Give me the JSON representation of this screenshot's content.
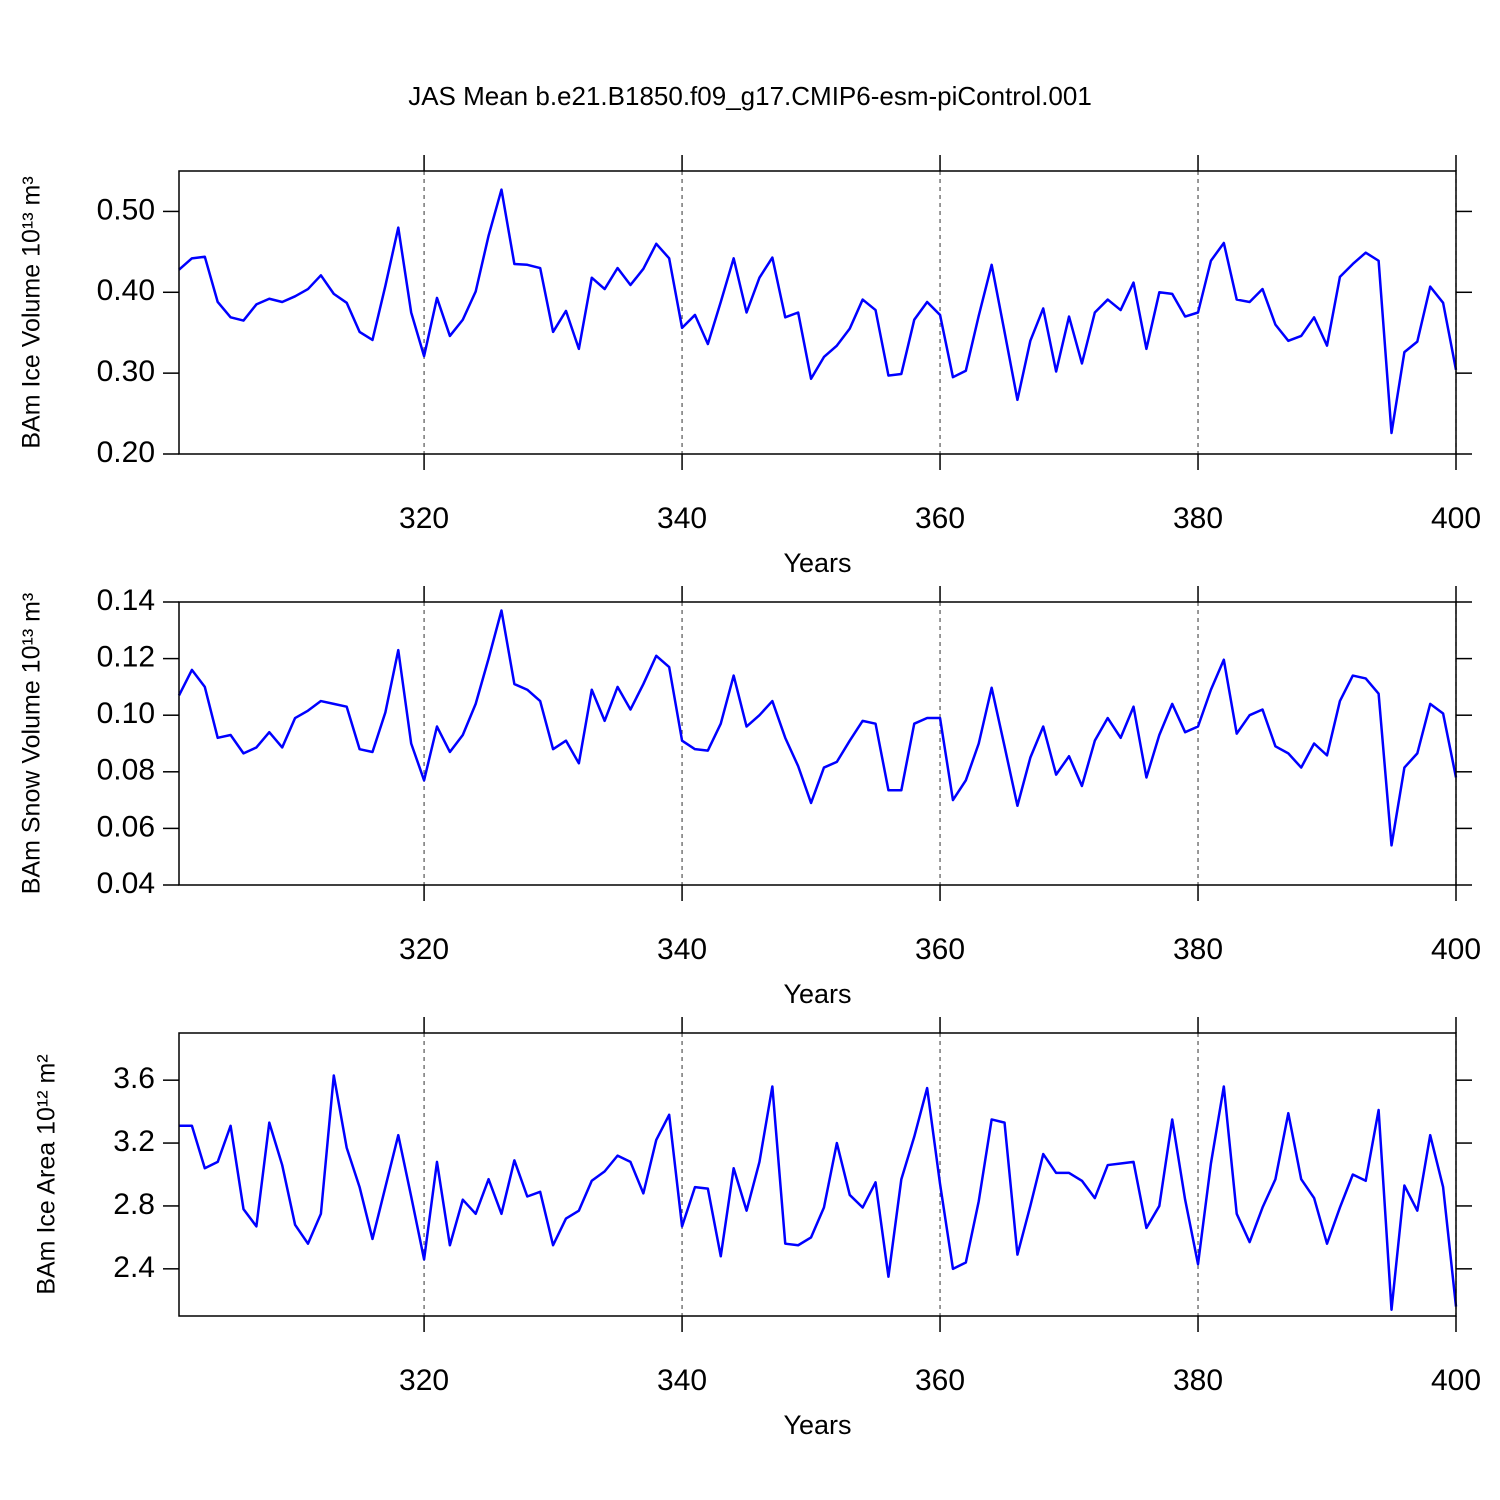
{
  "title": "JAS Mean b.e21.B1850.f09_g17.CMIP6-esm-piControl.001",
  "chart_data": [
    {
      "type": "line",
      "ylabel": "BAm Ice Volume 10¹³ m³",
      "xlabel": "Years",
      "color": "#0000ff",
      "xgrid": true,
      "xlim": [
        301,
        400
      ],
      "xticks": [
        320,
        340,
        360,
        380,
        400
      ],
      "ylim": [
        0.2,
        0.55
      ],
      "yticks": [
        {
          "value": 0.5,
          "label": "0.50"
        },
        {
          "value": 0.4,
          "label": "0.40"
        },
        {
          "value": 0.3,
          "label": "0.30"
        },
        {
          "value": 0.2,
          "label": "0.20"
        }
      ],
      "x": [
        301,
        302,
        303,
        304,
        305,
        306,
        307,
        308,
        309,
        310,
        311,
        312,
        313,
        314,
        315,
        316,
        317,
        318,
        319,
        320,
        321,
        322,
        323,
        324,
        325,
        326,
        327,
        328,
        329,
        330,
        331,
        332,
        333,
        334,
        335,
        336,
        337,
        338,
        339,
        340,
        341,
        342,
        343,
        344,
        345,
        346,
        347,
        348,
        349,
        350,
        351,
        352,
        353,
        354,
        355,
        356,
        357,
        358,
        359,
        360,
        361,
        362,
        363,
        364,
        365,
        366,
        367,
        368,
        369,
        370,
        371,
        372,
        373,
        374,
        375,
        376,
        377,
        378,
        379,
        380,
        381,
        382,
        383,
        384,
        385,
        386,
        387,
        388,
        389,
        390,
        391,
        392,
        393,
        394,
        395,
        396,
        397,
        398,
        399,
        400
      ],
      "values": [
        0.428,
        0.442,
        0.444,
        0.388,
        0.369,
        0.365,
        0.385,
        0.392,
        0.388,
        0.395,
        0.404,
        0.421,
        0.398,
        0.387,
        0.351,
        0.341,
        0.408,
        0.48,
        0.375,
        0.321,
        0.393,
        0.346,
        0.366,
        0.401,
        0.47,
        0.527,
        0.435,
        0.434,
        0.43,
        0.351,
        0.377,
        0.33,
        0.418,
        0.404,
        0.43,
        0.409,
        0.429,
        0.46,
        0.442,
        0.356,
        0.372,
        0.336,
        0.388,
        0.442,
        0.375,
        0.418,
        0.443,
        0.369,
        0.375,
        0.293,
        0.32,
        0.334,
        0.355,
        0.391,
        0.378,
        0.297,
        0.299,
        0.366,
        0.388,
        0.372,
        0.295,
        0.303,
        0.371,
        0.434,
        0.351,
        0.267,
        0.34,
        0.38,
        0.302,
        0.37,
        0.312,
        0.375,
        0.391,
        0.378,
        0.412,
        0.33,
        0.4,
        0.398,
        0.37,
        0.375,
        0.439,
        0.461,
        0.391,
        0.388,
        0.404,
        0.36,
        0.34,
        0.346,
        0.369,
        0.334,
        0.419,
        0.435,
        0.449,
        0.439,
        0.226,
        0.326,
        0.339,
        0.407,
        0.387,
        0.304
      ]
    },
    {
      "type": "line",
      "ylabel": "BAm Snow Volume 10¹³ m³",
      "xlabel": "Years",
      "color": "#0000ff",
      "xgrid": true,
      "xlim": [
        301,
        400
      ],
      "xticks": [
        320,
        340,
        360,
        380,
        400
      ],
      "ylim": [
        0.04,
        0.14
      ],
      "yticks": [
        0.14,
        0.12,
        {
          "value": 0.1,
          "label": "0.10"
        },
        0.08,
        0.06,
        0.04
      ],
      "x": [
        301,
        302,
        303,
        304,
        305,
        306,
        307,
        308,
        309,
        310,
        311,
        312,
        313,
        314,
        315,
        316,
        317,
        318,
        319,
        320,
        321,
        322,
        323,
        324,
        325,
        326,
        327,
        328,
        329,
        330,
        331,
        332,
        333,
        334,
        335,
        336,
        337,
        338,
        339,
        340,
        341,
        342,
        343,
        344,
        345,
        346,
        347,
        348,
        349,
        350,
        351,
        352,
        353,
        354,
        355,
        356,
        357,
        358,
        359,
        360,
        361,
        362,
        363,
        364,
        365,
        366,
        367,
        368,
        369,
        370,
        371,
        372,
        373,
        374,
        375,
        376,
        377,
        378,
        379,
        380,
        381,
        382,
        383,
        384,
        385,
        386,
        387,
        388,
        389,
        390,
        391,
        392,
        393,
        394,
        395,
        396,
        397,
        398,
        399,
        400
      ],
      "values": [
        0.107,
        0.116,
        0.11,
        0.092,
        0.093,
        0.0865,
        0.0886,
        0.094,
        0.0886,
        0.099,
        0.1016,
        0.105,
        0.104,
        0.103,
        0.088,
        0.087,
        0.101,
        0.123,
        0.09,
        0.077,
        0.096,
        0.087,
        0.093,
        0.104,
        0.12,
        0.137,
        0.111,
        0.109,
        0.105,
        0.088,
        0.091,
        0.083,
        0.109,
        0.098,
        0.11,
        0.102,
        0.111,
        0.121,
        0.117,
        0.091,
        0.088,
        0.0875,
        0.097,
        0.114,
        0.096,
        0.1,
        0.105,
        0.092,
        0.082,
        0.069,
        0.0815,
        0.0835,
        0.091,
        0.098,
        0.097,
        0.0735,
        0.0735,
        0.097,
        0.099,
        0.099,
        0.07,
        0.077,
        0.09,
        0.1097,
        0.089,
        0.068,
        0.085,
        0.096,
        0.079,
        0.0855,
        0.075,
        0.091,
        0.099,
        0.092,
        0.103,
        0.078,
        0.093,
        0.104,
        0.094,
        0.096,
        0.109,
        0.1196,
        0.0935,
        0.1,
        0.102,
        0.089,
        0.0865,
        0.0815,
        0.09,
        0.0858,
        0.105,
        0.114,
        0.113,
        0.1076,
        0.054,
        0.0815,
        0.0865,
        0.104,
        0.1006,
        0.078
      ]
    },
    {
      "type": "line",
      "ylabel": "BAm Ice Area 10¹² m²",
      "xlabel": "Years",
      "color": "#0000ff",
      "xgrid": true,
      "xlim": [
        301,
        400
      ],
      "xticks": [
        320,
        340,
        360,
        380,
        400
      ],
      "ylim": [
        2.1,
        3.9
      ],
      "yticks": [
        3.6,
        3.2,
        2.8,
        2.4
      ],
      "x": [
        301,
        302,
        303,
        304,
        305,
        306,
        307,
        308,
        309,
        310,
        311,
        312,
        313,
        314,
        315,
        316,
        317,
        318,
        319,
        320,
        321,
        322,
        323,
        324,
        325,
        326,
        327,
        328,
        329,
        330,
        331,
        332,
        333,
        334,
        335,
        336,
        337,
        338,
        339,
        340,
        341,
        342,
        343,
        344,
        345,
        346,
        347,
        348,
        349,
        350,
        351,
        352,
        353,
        354,
        355,
        356,
        357,
        358,
        359,
        360,
        361,
        362,
        363,
        364,
        365,
        366,
        367,
        368,
        369,
        370,
        371,
        372,
        373,
        374,
        375,
        376,
        377,
        378,
        379,
        380,
        381,
        382,
        383,
        384,
        385,
        386,
        387,
        388,
        389,
        390,
        391,
        392,
        393,
        394,
        395,
        396,
        397,
        398,
        399,
        400
      ],
      "values": [
        3.31,
        3.31,
        3.04,
        3.08,
        3.31,
        2.78,
        2.67,
        3.33,
        3.06,
        2.68,
        2.56,
        2.75,
        3.63,
        3.17,
        2.92,
        2.59,
        2.92,
        3.25,
        2.86,
        2.46,
        3.08,
        2.55,
        2.84,
        2.75,
        2.97,
        2.75,
        3.09,
        2.86,
        2.89,
        2.55,
        2.72,
        2.77,
        2.96,
        3.02,
        3.12,
        3.08,
        2.88,
        3.22,
        3.38,
        2.67,
        2.92,
        2.91,
        2.48,
        3.04,
        2.77,
        3.08,
        3.56,
        2.56,
        2.55,
        2.6,
        2.79,
        3.2,
        2.87,
        2.79,
        2.95,
        2.35,
        2.97,
        3.24,
        3.55,
        2.94,
        2.4,
        2.44,
        2.83,
        3.35,
        3.33,
        2.49,
        2.8,
        3.13,
        3.01,
        3.01,
        2.96,
        2.85,
        3.06,
        3.07,
        3.08,
        2.66,
        2.8,
        3.35,
        2.84,
        2.43,
        3.07,
        3.56,
        2.75,
        2.57,
        2.79,
        2.97,
        3.39,
        2.97,
        2.85,
        2.56,
        2.79,
        3.0,
        2.96,
        3.41,
        2.14,
        2.93,
        2.77,
        3.25,
        2.92,
        2.16
      ]
    }
  ]
}
